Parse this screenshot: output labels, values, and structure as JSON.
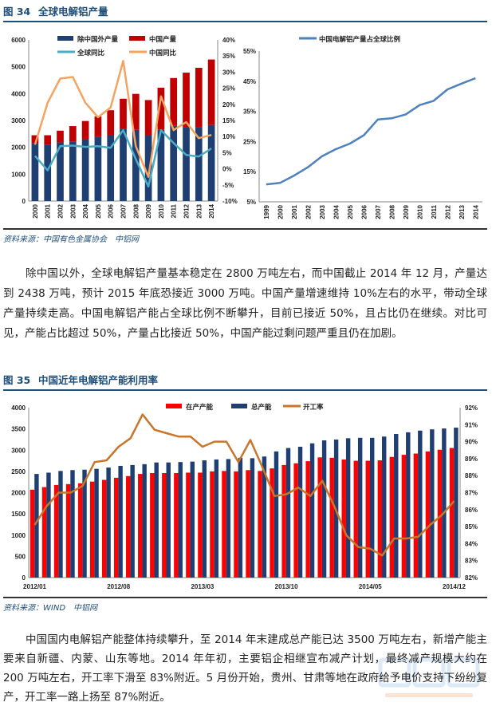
{
  "figure34": {
    "number": "图 34",
    "title": "全球电解铝产量",
    "source": "资料来源：中国有色金属协会　中铝网"
  },
  "paragraph1": "除中国以外，全球电解铝产量基本稳定在 2800 万吨左右，而中国截止 2014 年 12 月，产量达到 2438 万吨，预计 2015 年底恐接近 3000 万吨。中国产量增速维持 10%左右的水平，带动全球产量持续走高。中国电解铝产能占全球比例不断攀升，目前已接近 50%，且占比仍在继续。对比可见，产能占比超过 50%，产量占比接近 50%，中国产能过剩问题严重且仍在加剧。",
  "figure35": {
    "number": "图 35",
    "title": "中国近年电解铝产能利用率",
    "source": "资料来源：WIND　中铝网"
  },
  "paragraph2": "中国国内电解铝产能整体持续攀升，至 2014 年末建成总产能已达 3500 万吨左右，新增产能主要来自新疆、内蒙、山东等地。2014 年年初，主要铝企相继宣布减产计划，最终减产规模大约在 200 万吨左右，开工率下滑至 83%附近。5 月份开始，贵州、甘肃等地在政府给予电价支持下纷纷复产，开工率一路上扬至 87%附近。",
  "watermark": {
    "logo": "中铝网",
    "url": "www.cnal.com"
  },
  "chart_data": [
    {
      "type": "bar+line",
      "stacked": true,
      "categories": [
        "2000",
        "2001",
        "2002",
        "2003",
        "2004",
        "2005",
        "2006",
        "2007",
        "2008",
        "2009",
        "2010",
        "2011",
        "2012",
        "2013",
        "2014"
      ],
      "series": [
        {
          "name": "除中国外产量",
          "kind": "bar",
          "axis": "left",
          "color": "#1f3f73",
          "values": [
            2150,
            2100,
            2180,
            2220,
            2300,
            2380,
            2450,
            2700,
            2650,
            2450,
            2650,
            2800,
            2750,
            2750,
            2830
          ]
        },
        {
          "name": "中国产量",
          "kind": "bar",
          "axis": "left",
          "color": "#c00000",
          "values": [
            300,
            350,
            440,
            570,
            680,
            770,
            930,
            1110,
            1340,
            1310,
            1570,
            1780,
            2030,
            2210,
            2440
          ]
        },
        {
          "name": "全球同比",
          "kind": "line",
          "axis": "right",
          "color": "#4bacc6",
          "values": [
            4,
            -0.5,
            7,
            7.2,
            6.8,
            7,
            6.5,
            12,
            3,
            -5.5,
            12,
            8,
            4.3,
            3.8,
            6.3
          ]
        },
        {
          "name": "中国同比",
          "kind": "line",
          "axis": "right",
          "color": "#f4a460",
          "values": [
            7.5,
            20.5,
            28,
            28.5,
            20.5,
            16,
            19,
            33.5,
            7,
            -2.5,
            22.5,
            12,
            14.5,
            9.5,
            10.5
          ]
        }
      ],
      "ylim": [
        0,
        6000
      ],
      "yticks": [
        "0",
        "1000",
        "2000",
        "3000",
        "4000",
        "5000",
        "6000"
      ],
      "y2lim": [
        -10,
        40
      ],
      "y2ticks": [
        "-10%",
        "-5%",
        "0%",
        "5%",
        "10%",
        "15%",
        "20%",
        "25%",
        "30%",
        "35%",
        "40%"
      ],
      "legend": "top",
      "grid": false
    },
    {
      "type": "line",
      "categories": [
        "1999",
        "2000",
        "2001",
        "2002",
        "2003",
        "2004",
        "2005",
        "2006",
        "2007",
        "2008",
        "2009",
        "2010",
        "2011",
        "2012",
        "2013",
        "2014"
      ],
      "series": [
        {
          "name": "中国电解铝产量占全球比例",
          "color": "#4f81bd",
          "values": [
            10.8,
            11.3,
            13.7,
            16.5,
            20.1,
            22.5,
            24.3,
            27.1,
            32.3,
            32.7,
            34,
            37.1,
            38.5,
            42.3,
            44.2,
            46
          ]
        }
      ],
      "ylim": [
        5,
        55
      ],
      "yticks": [
        "5%",
        "15%",
        "25%",
        "35%",
        "45%",
        "55%"
      ],
      "legend": "top",
      "grid": false
    },
    {
      "type": "bar+line",
      "categories": [
        "2012/01",
        "2012/02",
        "2012/03",
        "2012/04",
        "2012/05",
        "2012/06",
        "2012/07",
        "2012/08",
        "2012/09",
        "2012/10",
        "2012/11",
        "2012/12",
        "2013/01",
        "2013/02",
        "2013/03",
        "2013/04",
        "2013/05",
        "2013/06",
        "2013/07",
        "2013/08",
        "2013/09",
        "2013/10",
        "2013/11",
        "2013/12",
        "2014/01",
        "2014/02",
        "2014/03",
        "2014/04",
        "2014/05",
        "2014/06",
        "2014/07",
        "2014/08",
        "2014/09",
        "2014/10",
        "2014/11",
        "2014/12"
      ],
      "xticks": [
        "2012/01",
        "2012/08",
        "2013/03",
        "2013/10",
        "2014/05",
        "2014/12"
      ],
      "series": [
        {
          "name": "在产产能",
          "kind": "bar",
          "axis": "left",
          "color": "#ff0000",
          "values": [
            2070,
            2130,
            2180,
            2200,
            2220,
            2260,
            2300,
            2350,
            2390,
            2440,
            2460,
            2460,
            2460,
            2470,
            2470,
            2500,
            2510,
            2500,
            2530,
            2510,
            2570,
            2650,
            2690,
            2740,
            2830,
            2820,
            2780,
            2750,
            2750,
            2760,
            2840,
            2890,
            2920,
            2970,
            3010,
            3050
          ]
        },
        {
          "name": "总产能",
          "kind": "bar",
          "axis": "left",
          "color": "#1f3f73",
          "values": [
            2440,
            2470,
            2510,
            2530,
            2540,
            2560,
            2590,
            2630,
            2650,
            2670,
            2710,
            2710,
            2720,
            2730,
            2760,
            2780,
            2790,
            2820,
            2810,
            2850,
            2970,
            3050,
            3080,
            3160,
            3230,
            3250,
            3280,
            3290,
            3290,
            3320,
            3380,
            3420,
            3460,
            3490,
            3510,
            3530
          ]
        },
        {
          "name": "开工率",
          "kind": "line",
          "axis": "right",
          "color": "#c8762b",
          "values": [
            85.1,
            86.2,
            87.0,
            87.0,
            87.4,
            88.8,
            88.9,
            89.7,
            90.2,
            91.6,
            90.7,
            90.5,
            90.3,
            90.3,
            89.7,
            90.0,
            90.0,
            88.8,
            90.1,
            88.5,
            86.8,
            86.9,
            87.3,
            86.8,
            87.7,
            86.2,
            84.5,
            83.8,
            83.7,
            83.3,
            84.3,
            84.3,
            84.4,
            85.1,
            85.7,
            86.5
          ]
        }
      ],
      "ylim": [
        0,
        4000
      ],
      "yticks": [
        "0",
        "500",
        "1000",
        "1500",
        "2000",
        "2500",
        "3000",
        "3500",
        "4000"
      ],
      "y2lim": [
        82,
        92
      ],
      "y2ticks": [
        "82%",
        "83%",
        "84%",
        "85%",
        "86%",
        "87%",
        "88%",
        "89%",
        "90%",
        "91%",
        "92%"
      ],
      "legend": "top",
      "grid": false
    }
  ]
}
